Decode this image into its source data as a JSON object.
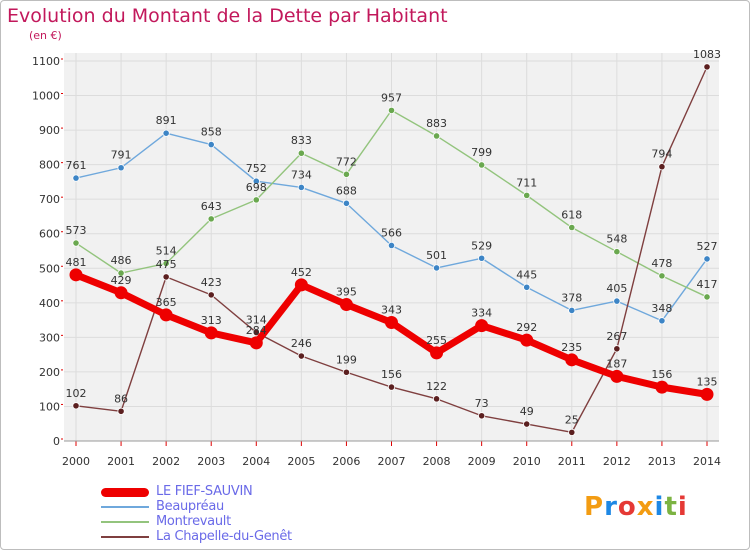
{
  "title": "Evolution du Montant de la Dette par Habitant",
  "unit": "(en €)",
  "brand": {
    "text": "Proxiti",
    "letter_colors": [
      "#f39c12",
      "#1e88e5",
      "#e53935",
      "#f39c12",
      "#1e88e5",
      "#7cb342",
      "#e53935"
    ]
  },
  "chart_data": {
    "type": "line",
    "title": "Evolution du Montant de la Dette par Habitant",
    "ylabel": "(en €)",
    "xlabel": "",
    "x": [
      "2000",
      "2001",
      "2002",
      "2003",
      "2004",
      "2005",
      "2006",
      "2007",
      "2008",
      "2009",
      "2010",
      "2011",
      "2012",
      "2013",
      "2014"
    ],
    "ylim": [
      0,
      1100
    ],
    "yticks": [
      0,
      100,
      200,
      300,
      400,
      500,
      600,
      700,
      800,
      900,
      1000,
      1100
    ],
    "grid": true,
    "legend_position": "bottom-left",
    "series": [
      {
        "name": "LE FIEF-SAUVIN",
        "color": "#ee0000",
        "marker_color": "#ee0000",
        "thick": true,
        "values": [
          481,
          429,
          365,
          313,
          284,
          452,
          395,
          343,
          255,
          334,
          292,
          235,
          187,
          156,
          135
        ],
        "labels": [
          "481",
          "429",
          "365",
          "313",
          "",
          "452",
          "395",
          "343",
          "255",
          "334",
          "292",
          "235",
          "187",
          "156",
          "135"
        ]
      },
      {
        "name": "Beaupréau",
        "color": "#6fa8dc",
        "marker_color": "#3d85c6",
        "thick": false,
        "values": [
          761,
          791,
          891,
          858,
          752,
          734,
          688,
          566,
          501,
          529,
          445,
          378,
          405,
          348,
          527
        ],
        "labels": [
          "761",
          "791",
          "891",
          "858",
          "752",
          "734",
          "688",
          "566",
          "501",
          "529",
          "445",
          "378",
          "405",
          "348",
          "527"
        ]
      },
      {
        "name": "Montrevault",
        "color": "#93c47d",
        "marker_color": "#6aa84f",
        "thick": false,
        "values": [
          573,
          486,
          514,
          643,
          698,
          833,
          772,
          957,
          883,
          799,
          711,
          618,
          548,
          478,
          417
        ],
        "labels": [
          "573",
          "486",
          "514",
          "643",
          "698",
          "833",
          "772",
          "957",
          "883",
          "799",
          "711",
          "618",
          "548",
          "478",
          "417"
        ]
      },
      {
        "name": "La Chapelle-du-Genêt",
        "color": "#7f3f3f",
        "marker_color": "#5b1f1f",
        "thick": false,
        "values": [
          102,
          86,
          475,
          423,
          314,
          246,
          199,
          156,
          122,
          73,
          49,
          25,
          267,
          794,
          1083
        ],
        "labels": [
          "102",
          "86",
          "475",
          "423",
          "314",
          "246",
          "199",
          "156",
          "122",
          "73",
          "49",
          "25",
          "267",
          "794",
          "1083"
        ]
      }
    ],
    "extra_labels": [
      {
        "text": "284",
        "x": "2004",
        "y": 284
      }
    ]
  }
}
